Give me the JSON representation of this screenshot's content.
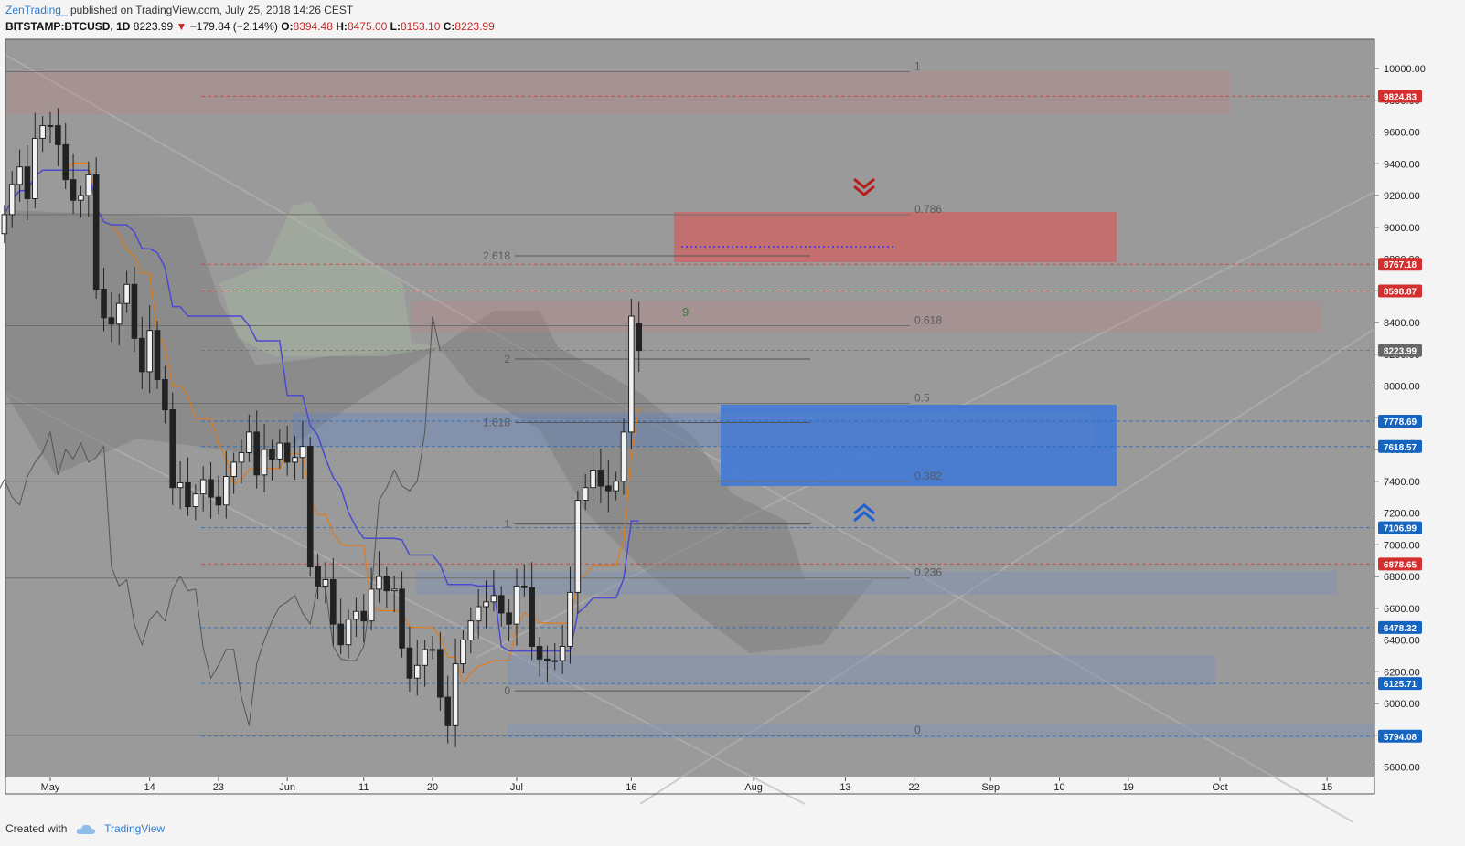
{
  "header": {
    "author": "ZenTrading_",
    "published": "published on TradingView.com, July 25, 2018 14:26 CEST",
    "symbol": "BITSTAMP:BTCUSD, 1D",
    "last": "8223.99",
    "change": "−179.84 (−2.14%)",
    "o_label": "O:",
    "o": "8394.48",
    "h_label": "H:",
    "h": "8475.00",
    "l_label": "L:",
    "l": "8153.10",
    "c_label": "C:",
    "c": "8223.99"
  },
  "footer": {
    "created_with": "Created with",
    "brand": "TradingView"
  },
  "chart_data": {
    "type": "candlestick",
    "symbol": "BITSTAMP:BTCUSD",
    "interval": "1D",
    "ylim": [
      5500,
      10200
    ],
    "y_ticks": [
      5600,
      5800,
      6000,
      6200,
      6400,
      6600,
      6800,
      7000,
      7200,
      7400,
      7600,
      7800,
      8000,
      8200,
      8400,
      8600,
      8800,
      9000,
      9200,
      9400,
      9600,
      9800,
      10000
    ],
    "x_ticks": [
      {
        "label": "May",
        "day": 0
      },
      {
        "label": "14",
        "day": 13
      },
      {
        "label": "23",
        "day": 22
      },
      {
        "label": "Jun",
        "day": 31
      },
      {
        "label": "11",
        "day": 41
      },
      {
        "label": "20",
        "day": 50
      },
      {
        "label": "Jul",
        "day": 61
      },
      {
        "label": "16",
        "day": 76
      },
      {
        "label": "Aug",
        "day": 92
      },
      {
        "label": "13",
        "day": 104
      },
      {
        "label": "22",
        "day": 113
      },
      {
        "label": "Sep",
        "day": 123
      },
      {
        "label": "10",
        "day": 132
      },
      {
        "label": "19",
        "day": 141
      },
      {
        "label": "Oct",
        "day": 153
      },
      {
        "label": "15",
        "day": 167
      }
    ],
    "candles_close": [
      9080,
      9270,
      9380,
      9180,
      9560,
      9640,
      9640,
      9520,
      9300,
      9170,
      9200,
      9330,
      8610,
      8430,
      8390,
      8520,
      8640,
      8300,
      8090,
      8350,
      8040,
      7850,
      7360,
      7390,
      7240,
      7320,
      7410,
      7300,
      7250,
      7430,
      7520,
      7580,
      7710,
      7440,
      7600,
      7540,
      7640,
      7520,
      7550,
      7620,
      6860,
      6740,
      6780,
      6500,
      6370,
      6530,
      6580,
      6520,
      6720,
      6800,
      6710,
      6720,
      6350,
      6160,
      6240,
      6340,
      6340,
      6040,
      5860,
      6250,
      6400,
      6520,
      6610,
      6640,
      6680,
      6570,
      6500,
      6740,
      6730,
      6360,
      6280,
      6270,
      6270,
      6360,
      6700,
      7280,
      7360,
      7470,
      7370,
      7340,
      7400,
      7710,
      8440,
      8220
    ],
    "last_candle": {
      "o": 8394.48,
      "h": 8475.0,
      "l": 8153.1,
      "c": 8223.99
    },
    "price_labels": [
      {
        "value": "9824.83",
        "color": "#d32f2f"
      },
      {
        "value": "8767.18",
        "color": "#d32f2f"
      },
      {
        "value": "8598.87",
        "color": "#d32f2f"
      },
      {
        "value": "8223.99",
        "color": "#666666"
      },
      {
        "value": "7778.69",
        "color": "#1565c0"
      },
      {
        "value": "7618.57",
        "color": "#1565c0"
      },
      {
        "value": "7106.99",
        "color": "#1565c0"
      },
      {
        "value": "6878.65",
        "color": "#d32f2f"
      },
      {
        "value": "6478.32",
        "color": "#1565c0"
      },
      {
        "value": "6125.71",
        "color": "#1565c0"
      },
      {
        "value": "5794.08",
        "color": "#1565c0"
      }
    ],
    "fib_retracement": [
      {
        "label": "1",
        "price": 9980
      },
      {
        "label": "0.786",
        "price": 9080
      },
      {
        "label": "0.618",
        "price": 8380
      },
      {
        "label": "0.5",
        "price": 7890
      },
      {
        "label": "0.382",
        "price": 7400
      },
      {
        "label": "0.236",
        "price": 6790
      },
      {
        "label": "0",
        "price": 5800
      }
    ],
    "fib_extension": [
      {
        "label": "2.618",
        "price": 8820
      },
      {
        "label": "2",
        "price": 8170
      },
      {
        "label": "1.618",
        "price": 7770
      },
      {
        "label": "1",
        "price": 7130
      },
      {
        "label": "0",
        "price": 6080
      }
    ],
    "countdown_label": "9",
    "colors": {
      "resistance": "#d32f2f",
      "support": "#1565c0",
      "cloud": "#9e9e9e",
      "tenkan": "#e07b1c",
      "kijun": "#4a4ad0",
      "senkou": "#b94a4a"
    }
  }
}
